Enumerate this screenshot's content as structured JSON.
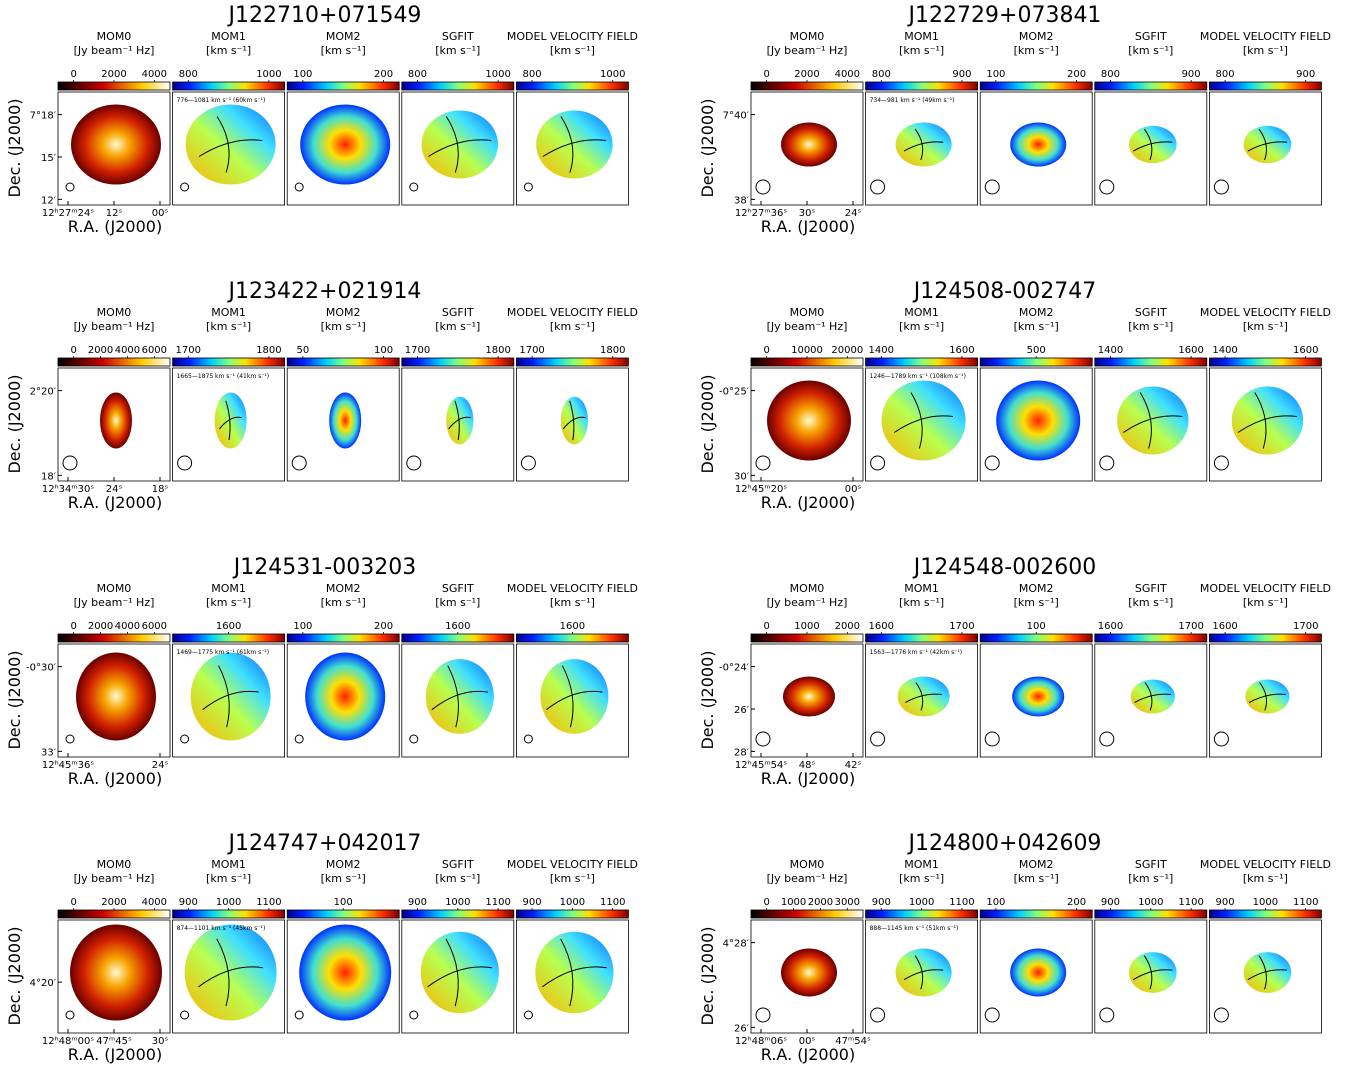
{
  "columns": [
    {
      "title": "MOM0",
      "unit": "[Jy beam⁻¹ Hz]"
    },
    {
      "title": "MOM1",
      "unit": "[km s⁻¹]"
    },
    {
      "title": "MOM2",
      "unit": "[km s⁻¹]"
    },
    {
      "title": "SGFIT",
      "unit": "[km s⁻¹]"
    },
    {
      "title": "MODEL VELOCITY FIELD",
      "unit": "[km s⁻¹]"
    }
  ],
  "axis_labels": {
    "dec": "Dec. (J2000)",
    "ra": "R.A. (J2000)"
  },
  "panels": [
    {
      "name": "J122710+071549",
      "colorbar_ticks": [
        [
          0,
          2000,
          4000
        ],
        [
          800,
          1000
        ],
        [
          100,
          200
        ],
        [
          800,
          1000
        ],
        [
          800,
          1000
        ]
      ],
      "velocity_range": "776—1081 km s⁻¹ (60km s⁻¹)",
      "dec_ticks": [
        "7°18′",
        "15′",
        "12′"
      ],
      "ra_ticks": [
        "12ʰ27ᵐ24ˢ",
        "12ˢ",
        "00ˢ"
      ]
    },
    {
      "name": "J122729+073841",
      "colorbar_ticks": [
        [
          0,
          2000,
          4000
        ],
        [
          800,
          900
        ],
        [
          100,
          200
        ],
        [
          800,
          900
        ],
        [
          800,
          900
        ]
      ],
      "velocity_range": "734—981 km s⁻¹ (49km s⁻¹)",
      "dec_ticks": [
        "7°40′",
        "38′"
      ],
      "ra_ticks": [
        "12ʰ27ᵐ36ˢ",
        "30ˢ",
        "24ˢ"
      ]
    },
    {
      "name": "J123422+021914",
      "colorbar_ticks": [
        [
          0,
          2000,
          4000,
          6000
        ],
        [
          1700,
          1800
        ],
        [
          50,
          100
        ],
        [
          1700,
          1800
        ],
        [
          1700,
          1800
        ]
      ],
      "velocity_range": "1665—1875 km s⁻¹ (41km s⁻¹)",
      "dec_ticks": [
        "2°20′",
        "18′"
      ],
      "ra_ticks": [
        "12ʰ34ᵐ30ˢ",
        "24ˢ",
        "18ˢ"
      ]
    },
    {
      "name": "J124508-002747",
      "colorbar_ticks": [
        [
          0,
          10000,
          20000
        ],
        [
          1400,
          1600
        ],
        [
          500
        ],
        [
          1400,
          1600
        ],
        [
          1400,
          1600
        ]
      ],
      "velocity_range": "1246—1789 km s⁻¹ (108km s⁻¹)",
      "dec_ticks": [
        "-0°25′",
        "30′"
      ],
      "ra_ticks": [
        "12ʰ45ᵐ20ˢ",
        "00ˢ"
      ]
    },
    {
      "name": "J124531-003203",
      "colorbar_ticks": [
        [
          0,
          2000,
          4000,
          6000
        ],
        [
          1600
        ],
        [
          100,
          200
        ],
        [
          1600
        ],
        [
          1600
        ]
      ],
      "velocity_range": "1469—1775 km s⁻¹ (61km s⁻¹)",
      "dec_ticks": [
        "-0°30′",
        "33′"
      ],
      "ra_ticks": [
        "12ʰ45ᵐ36ˢ",
        "24ˢ"
      ]
    },
    {
      "name": "J124548-002600",
      "colorbar_ticks": [
        [
          0,
          1000,
          2000
        ],
        [
          1600,
          1700
        ],
        [
          100
        ],
        [
          1600,
          1700
        ],
        [
          1600,
          1700
        ]
      ],
      "velocity_range": "1563—1776 km s⁻¹ (42km s⁻¹)",
      "dec_ticks": [
        "-0°24′",
        "26′",
        "28′"
      ],
      "ra_ticks": [
        "12ʰ45ᵐ54ˢ",
        "48ˢ",
        "42ˢ"
      ]
    },
    {
      "name": "J124747+042017",
      "colorbar_ticks": [
        [
          0,
          2000,
          4000
        ],
        [
          900,
          1000,
          1100
        ],
        [
          100
        ],
        [
          900,
          1000,
          1100
        ],
        [
          900,
          1000,
          1100
        ]
      ],
      "velocity_range": "874—1101 km s⁻¹ (45km s⁻¹)",
      "dec_ticks": [
        "4°20′"
      ],
      "ra_ticks": [
        "12ʰ48ᵐ00ˢ",
        "47ᵐ45ˢ",
        "30ˢ"
      ]
    },
    {
      "name": "J124800+042609",
      "colorbar_ticks": [
        [
          0,
          1000,
          2000,
          3000
        ],
        [
          900,
          1000,
          1100
        ],
        [
          100,
          200
        ],
        [
          900,
          1000,
          1100
        ],
        [
          900,
          1000,
          1100
        ]
      ],
      "velocity_range": "888—1145 km s⁻¹ (51km s⁻¹)",
      "dec_ticks": [
        "4°28′",
        "26′"
      ],
      "ra_ticks": [
        "12ʰ48ᵐ06ˢ",
        "00ˢ",
        "47ᵐ54ˢ"
      ]
    }
  ]
}
